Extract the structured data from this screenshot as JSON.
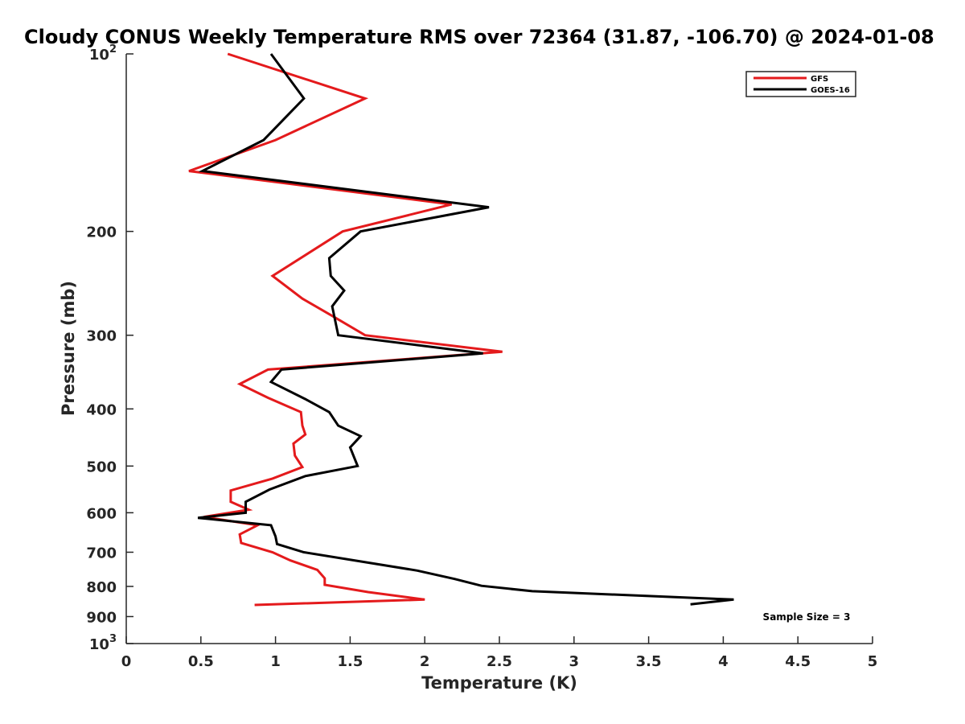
{
  "chart_data": {
    "type": "line",
    "title": "Cloudy CONUS Weekly Temperature RMS over 72364 (31.87, -106.70) @ 2024-01-08",
    "xlabel": "Temperature (K)",
    "ylabel": "Pressure (mb)",
    "xlim": [
      0,
      5
    ],
    "ylim": [
      100,
      1000
    ],
    "y_scale": "log",
    "y_reversed": true,
    "grid": false,
    "legend_position": "top-right",
    "x_ticks": [
      "0",
      "0.5",
      "1",
      "1.5",
      "2",
      "2.5",
      "3",
      "3.5",
      "4",
      "4.5",
      "5"
    ],
    "x_tick_values": [
      0,
      0.5,
      1,
      1.5,
      2,
      2.5,
      3,
      3.5,
      4,
      4.5,
      5
    ],
    "y_ticks": [
      {
        "value": 100,
        "label": "10",
        "sup": "2"
      },
      {
        "value": 200,
        "label": "200",
        "sup": ""
      },
      {
        "value": 300,
        "label": "300",
        "sup": ""
      },
      {
        "value": 400,
        "label": "400",
        "sup": ""
      },
      {
        "value": 500,
        "label": "500",
        "sup": ""
      },
      {
        "value": 600,
        "label": "600",
        "sup": ""
      },
      {
        "value": 700,
        "label": "700",
        "sup": ""
      },
      {
        "value": 800,
        "label": "800",
        "sup": ""
      },
      {
        "value": 900,
        "label": "900",
        "sup": ""
      },
      {
        "value": 1000,
        "label": "10",
        "sup": "3"
      }
    ],
    "annotation": "Sample Size = 3",
    "series": [
      {
        "name": "GFS",
        "color": "#e41a1c",
        "points": [
          [
            0.68,
            100
          ],
          [
            1.6,
            119
          ],
          [
            1.0,
            140
          ],
          [
            0.42,
            158
          ],
          [
            2.18,
            180
          ],
          [
            1.45,
            200
          ],
          [
            0.98,
            238
          ],
          [
            1.18,
            260
          ],
          [
            1.4,
            280
          ],
          [
            1.6,
            300
          ],
          [
            2.52,
            320
          ],
          [
            0.95,
            343
          ],
          [
            0.76,
            363
          ],
          [
            0.95,
            383
          ],
          [
            1.17,
            405
          ],
          [
            1.18,
            427
          ],
          [
            1.2,
            442
          ],
          [
            1.12,
            458
          ],
          [
            1.13,
            480
          ],
          [
            1.18,
            502
          ],
          [
            0.98,
            525
          ],
          [
            0.7,
            550
          ],
          [
            0.7,
            575
          ],
          [
            0.82,
            593
          ],
          [
            0.52,
            610
          ],
          [
            0.88,
            630
          ],
          [
            0.76,
            653
          ],
          [
            0.77,
            675
          ],
          [
            0.98,
            700
          ],
          [
            1.1,
            723
          ],
          [
            1.28,
            750
          ],
          [
            1.33,
            775
          ],
          [
            1.33,
            795
          ],
          [
            1.62,
            818
          ],
          [
            2.0,
            842
          ],
          [
            0.86,
            860
          ]
        ]
      },
      {
        "name": "GOES-16",
        "color": "#000000",
        "points": [
          [
            0.97,
            100
          ],
          [
            1.19,
            119
          ],
          [
            0.92,
            140
          ],
          [
            0.51,
            158
          ],
          [
            2.43,
            182
          ],
          [
            1.57,
            200
          ],
          [
            1.36,
            222
          ],
          [
            1.37,
            238
          ],
          [
            1.46,
            252
          ],
          [
            1.38,
            268
          ],
          [
            1.42,
            300
          ],
          [
            2.39,
            322
          ],
          [
            1.04,
            343
          ],
          [
            0.97,
            360
          ],
          [
            1.2,
            385
          ],
          [
            1.36,
            405
          ],
          [
            1.42,
            427
          ],
          [
            1.57,
            445
          ],
          [
            1.5,
            465
          ],
          [
            1.55,
            500
          ],
          [
            1.2,
            520
          ],
          [
            0.96,
            548
          ],
          [
            0.8,
            575
          ],
          [
            0.8,
            600
          ],
          [
            0.48,
            612
          ],
          [
            0.97,
            630
          ],
          [
            1.0,
            658
          ],
          [
            1.01,
            678
          ],
          [
            1.19,
            700
          ],
          [
            1.95,
            752
          ],
          [
            2.2,
            777
          ],
          [
            2.38,
            798
          ],
          [
            2.72,
            815
          ],
          [
            4.07,
            842
          ],
          [
            3.78,
            858
          ]
        ]
      }
    ]
  }
}
